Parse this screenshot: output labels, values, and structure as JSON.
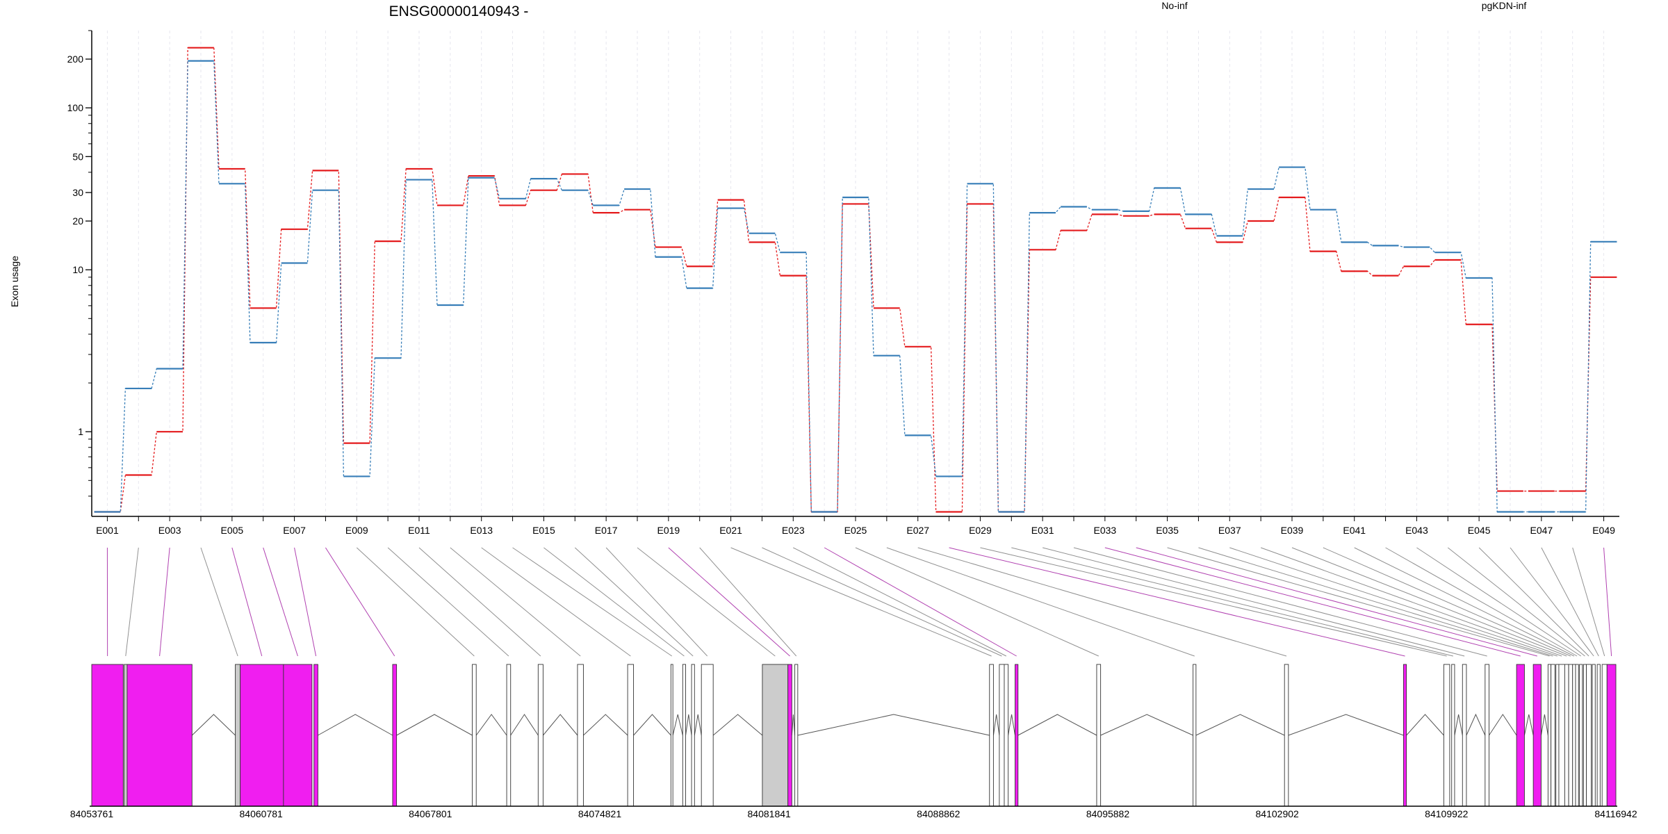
{
  "chart_data": {
    "type": "line",
    "title": "ENSG00000140943 -",
    "ylabel": "Exon usage",
    "xlabel": "",
    "yscale": "log",
    "ylim": [
      0.3,
      300
    ],
    "ytick_labels": [
      "1",
      "10",
      "20",
      "30",
      "50",
      "100",
      "200"
    ],
    "ytick_values": [
      1,
      10,
      20,
      30,
      50,
      100,
      200
    ],
    "grid": "vertical dashed at each exon",
    "legend_position": "top",
    "exons": [
      "E001",
      "E002",
      "E003",
      "E004",
      "E005",
      "E006",
      "E007",
      "E008",
      "E009",
      "E010",
      "E011",
      "E012",
      "E013",
      "E014",
      "E015",
      "E016",
      "E017",
      "E018",
      "E019",
      "E020",
      "E021",
      "E022",
      "E023",
      "E024",
      "E025",
      "E026",
      "E027",
      "E028",
      "E029",
      "E030",
      "E031",
      "E032",
      "E033",
      "E034",
      "E035",
      "E036",
      "E037",
      "E038",
      "E039",
      "E040",
      "E041",
      "E042",
      "E043",
      "E044",
      "E045",
      "E046",
      "E047",
      "E048",
      "E049"
    ],
    "exon_labels_shown": [
      "E001",
      "E003",
      "E005",
      "E007",
      "E009",
      "E011",
      "E013",
      "E015",
      "E017",
      "E019",
      "E021",
      "E023",
      "E025",
      "E027",
      "E029",
      "E031",
      "E033",
      "E035",
      "E037",
      "E039",
      "E041",
      "E043",
      "E045",
      "E047",
      "E049"
    ],
    "series": [
      {
        "name": "No-inf",
        "color": "#e41a1c",
        "values": [
          0.32,
          0.54,
          1.0,
          235,
          42,
          5.8,
          17.8,
          41,
          0.85,
          15,
          42,
          25,
          38,
          25,
          31,
          39,
          22.5,
          23.5,
          13.8,
          10.5,
          27,
          14.8,
          9.2,
          0.32,
          25.5,
          5.8,
          3.35,
          0.32,
          25.5,
          0.32,
          13.3,
          17.5,
          22,
          21.5,
          22,
          18,
          14.8,
          20,
          28,
          13,
          9.8,
          9.2,
          10.5,
          11.5,
          4.6,
          0.43,
          0.43,
          0.43,
          9.0
        ]
      },
      {
        "name": "pgKDN-inf",
        "color": "#377eb8",
        "values": [
          0.32,
          1.85,
          2.45,
          195,
          34,
          3.55,
          11,
          31,
          0.53,
          2.85,
          36,
          6.05,
          37,
          27.5,
          36.5,
          31,
          25,
          31.5,
          12,
          7.7,
          24,
          16.8,
          12.8,
          0.32,
          28,
          2.95,
          0.95,
          0.53,
          34,
          0.32,
          22.5,
          24.5,
          23.5,
          23,
          32,
          22,
          16.2,
          31.5,
          43,
          23.5,
          14.8,
          14.1,
          13.8,
          12.8,
          8.9,
          0.32,
          0.32,
          0.32,
          14.9
        ]
      }
    ],
    "genomic_axis": {
      "tick_labels": [
        "84053761",
        "84060781",
        "84067801",
        "84074821",
        "84081841",
        "84088862",
        "84095882",
        "84102902",
        "84109922",
        "84116942"
      ]
    },
    "exon_highlight": [
      "magenta",
      "grey",
      "magenta",
      "grey",
      "magenta",
      "magenta",
      "magenta",
      "magenta",
      "white",
      "white",
      "white",
      "white",
      "white",
      "white",
      "white",
      "white",
      "white",
      "grey",
      "magenta",
      "white",
      "white",
      "white",
      "white",
      "magenta",
      "white",
      "white",
      "white",
      "magenta",
      "white",
      "white",
      "white",
      "white",
      "magenta",
      "magenta",
      "white",
      "white",
      "white",
      "white",
      "white",
      "white",
      "white",
      "white",
      "white",
      "white",
      "white",
      "white",
      "white",
      "white",
      "magenta"
    ],
    "colors": {
      "highlight": "#f01ef0",
      "grey_exon": "#cccccc",
      "magenta_connector": "#b040b0",
      "grey_connector": "#909090"
    }
  }
}
